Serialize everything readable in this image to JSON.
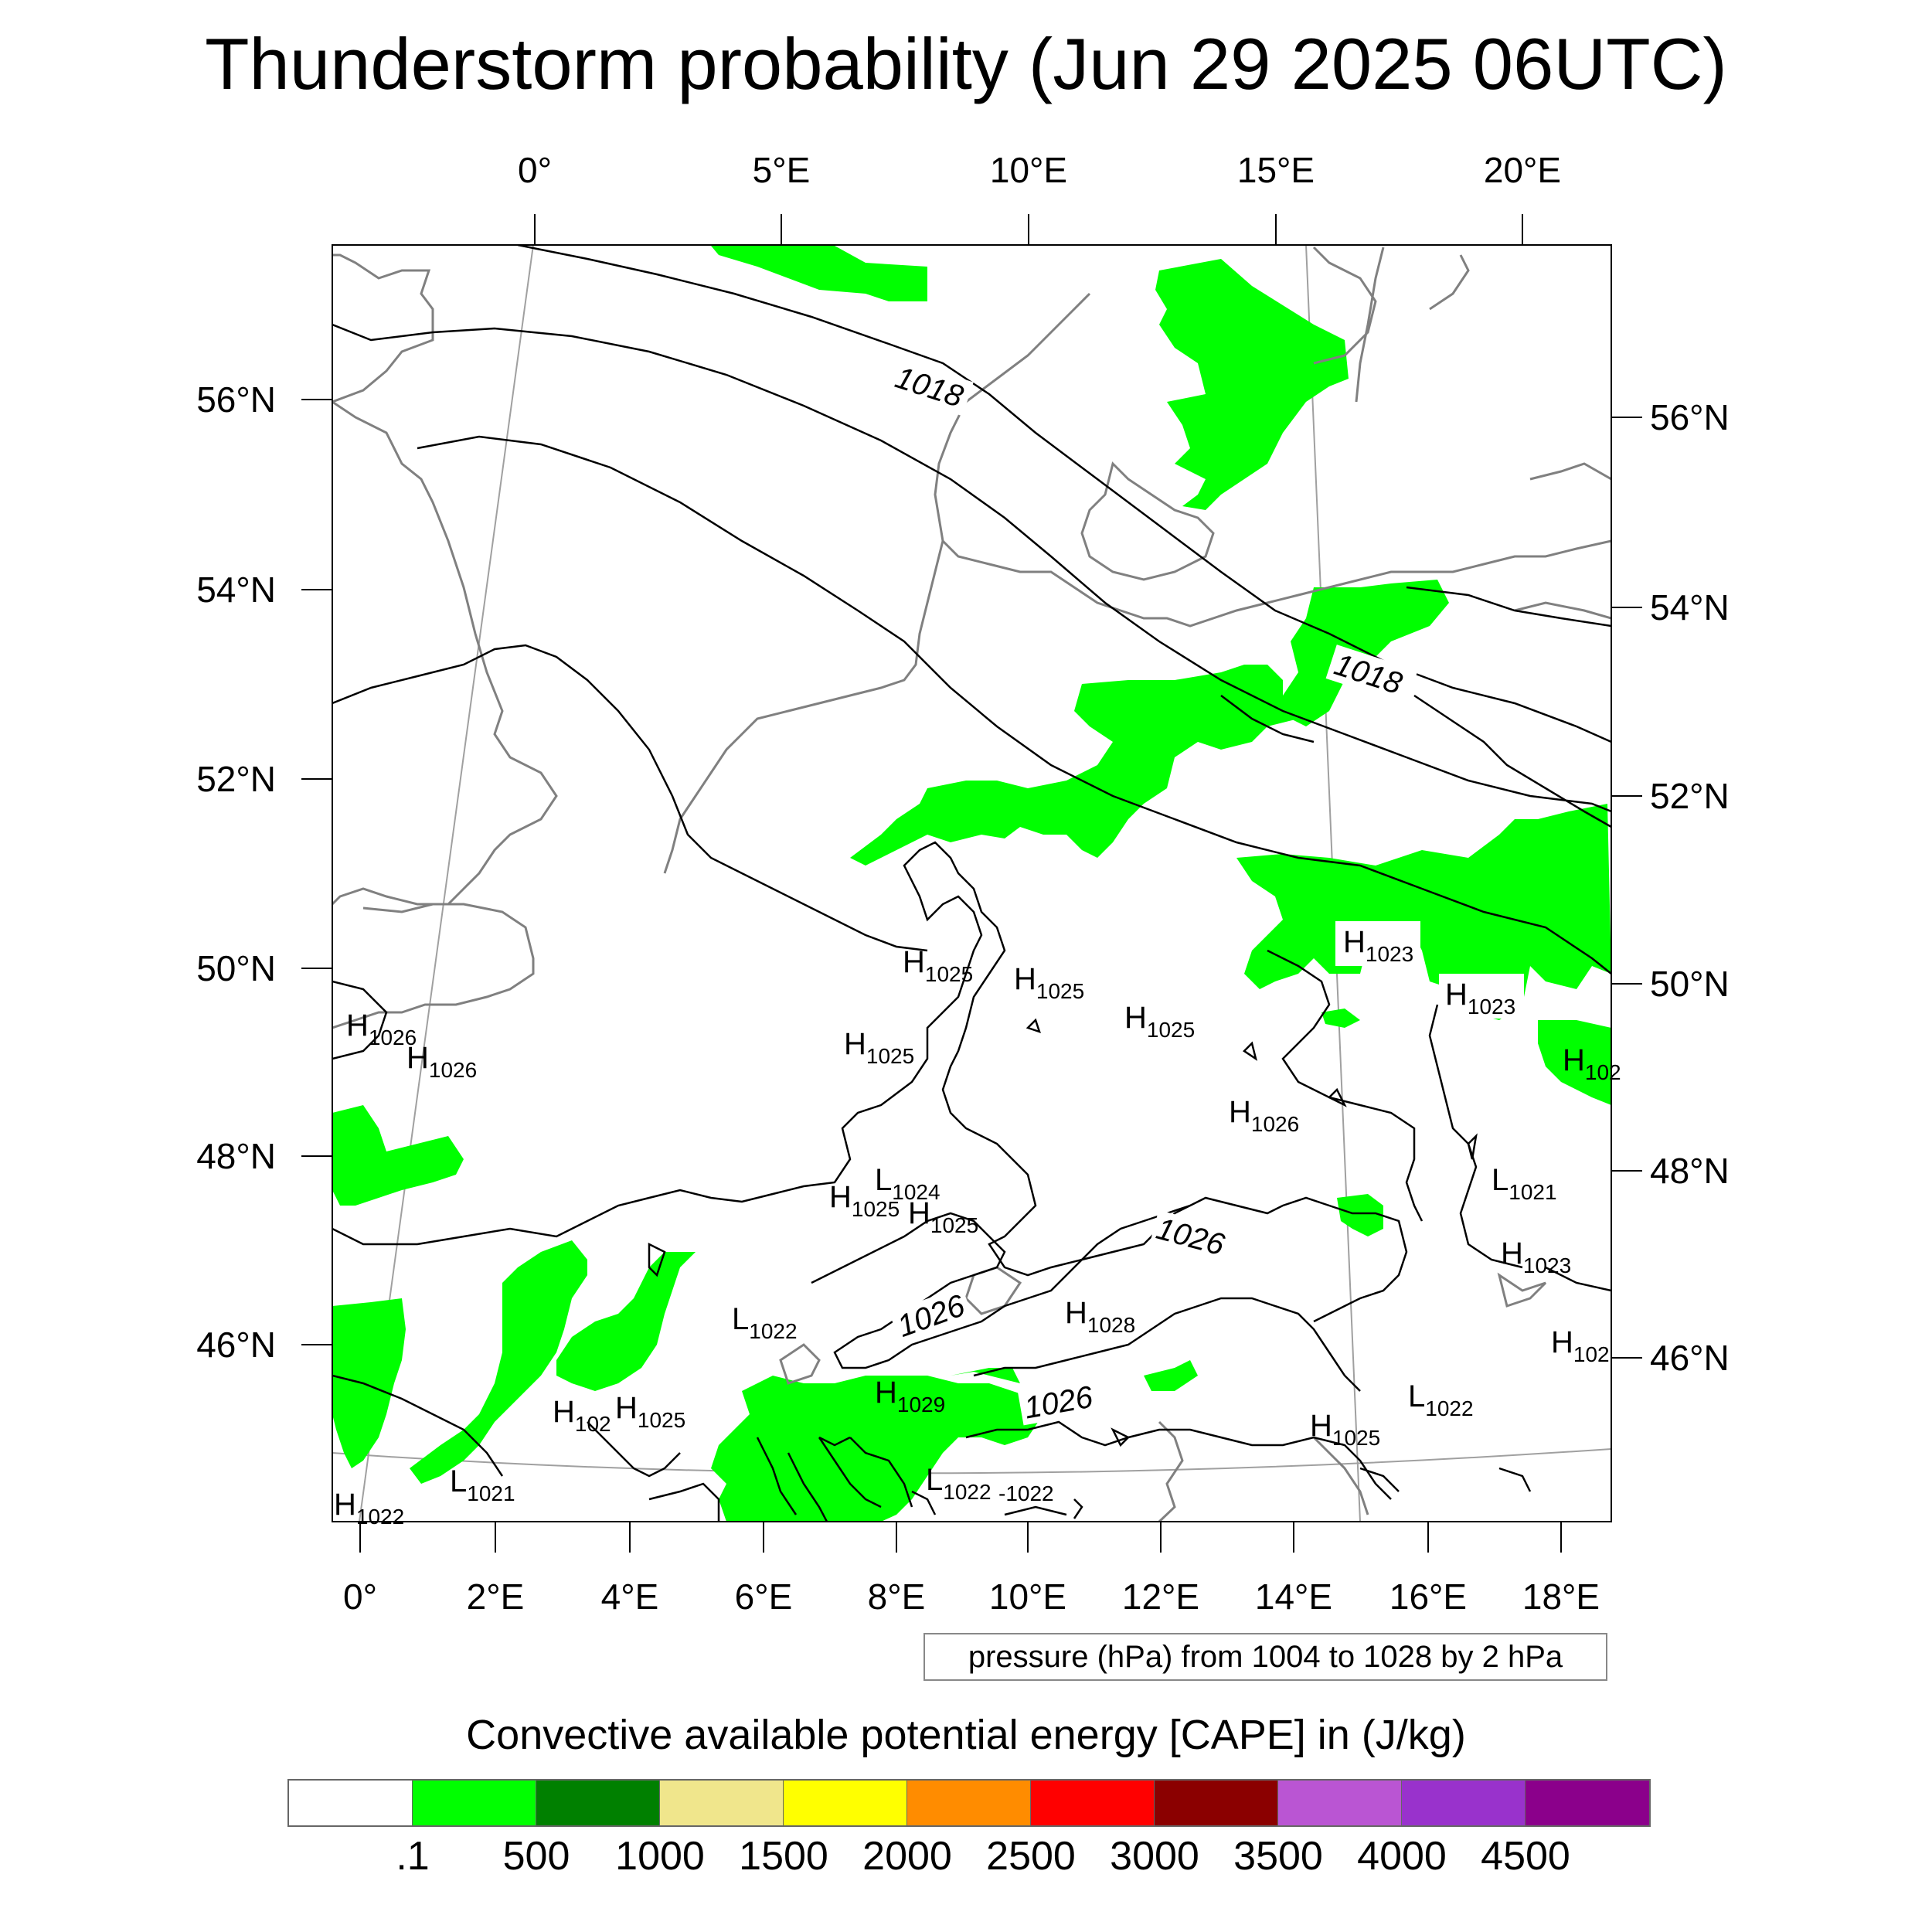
{
  "title": "Thunderstorm probability (Jun 29 2025 06UTC)",
  "map": {
    "top_lon_labels": [
      "0°",
      "5°E",
      "10°E",
      "15°E",
      "20°E"
    ],
    "bottom_lon_labels": [
      "0°",
      "2°E",
      "4°E",
      "6°E",
      "8°E",
      "10°E",
      "12°E",
      "14°E",
      "16°E",
      "18°E"
    ],
    "left_lat_labels": [
      "56°N",
      "54°N",
      "52°N",
      "50°N",
      "48°N",
      "46°N"
    ],
    "right_lat_labels": [
      "56°N",
      "54°N",
      "52°N",
      "50°N",
      "48°N",
      "46°N"
    ],
    "contour_labels": [
      "1018",
      "1018",
      "1026",
      "1026",
      "1026"
    ],
    "pressure_centers": [
      {
        "letter": "H",
        "value": "1025"
      },
      {
        "letter": "H",
        "value": "1025"
      },
      {
        "letter": "H",
        "value": "1025"
      },
      {
        "letter": "H",
        "value": "1025"
      },
      {
        "letter": "H",
        "value": "1023"
      },
      {
        "letter": "H",
        "value": "1023"
      },
      {
        "letter": "H",
        "value": "102"
      },
      {
        "letter": "H",
        "value": "1026"
      },
      {
        "letter": "H",
        "value": "1026"
      },
      {
        "letter": "H",
        "value": "1026"
      },
      {
        "letter": "L",
        "value": "1024"
      },
      {
        "letter": "H",
        "value": "1025"
      },
      {
        "letter": "H",
        "value": "1025"
      },
      {
        "letter": "L",
        "value": "1021"
      },
      {
        "letter": "H",
        "value": "1023"
      },
      {
        "letter": "L",
        "value": "1022"
      },
      {
        "letter": "H",
        "value": "1028"
      },
      {
        "letter": "H",
        "value": "102"
      },
      {
        "letter": "H",
        "value": "102"
      },
      {
        "letter": "H",
        "value": "1025"
      },
      {
        "letter": "H",
        "value": "1029"
      },
      {
        "letter": "H",
        "value": "1025"
      },
      {
        "letter": "L",
        "value": "1022"
      },
      {
        "letter": "L",
        "value": "1021"
      },
      {
        "letter": "H",
        "value": "1022"
      },
      {
        "letter": "L",
        "value": "1022"
      },
      {
        "letter": "",
        "value": "-1022"
      }
    ],
    "contour_color": "#000000",
    "coastline_color": "#808080",
    "gridline_color": "#a0a0a0",
    "cape_fill_color": "#00ff00"
  },
  "pressure_note": "pressure (hPa) from 1004 to 1028 by 2 hPa",
  "legend": {
    "title": "Convective available potential energy [CAPE] in (J/kg)",
    "colors": [
      "#ffffff",
      "#00ff00",
      "#008000",
      "#f0e68c",
      "#ffff00",
      "#ff8c00",
      "#ff0000",
      "#8b0000",
      "#ba55d3",
      "#9932cc",
      "#8b008b"
    ],
    "labels": [
      ".1",
      "500",
      "1000",
      "1500",
      "2000",
      "2500",
      "3000",
      "3500",
      "4000",
      "4500"
    ]
  }
}
